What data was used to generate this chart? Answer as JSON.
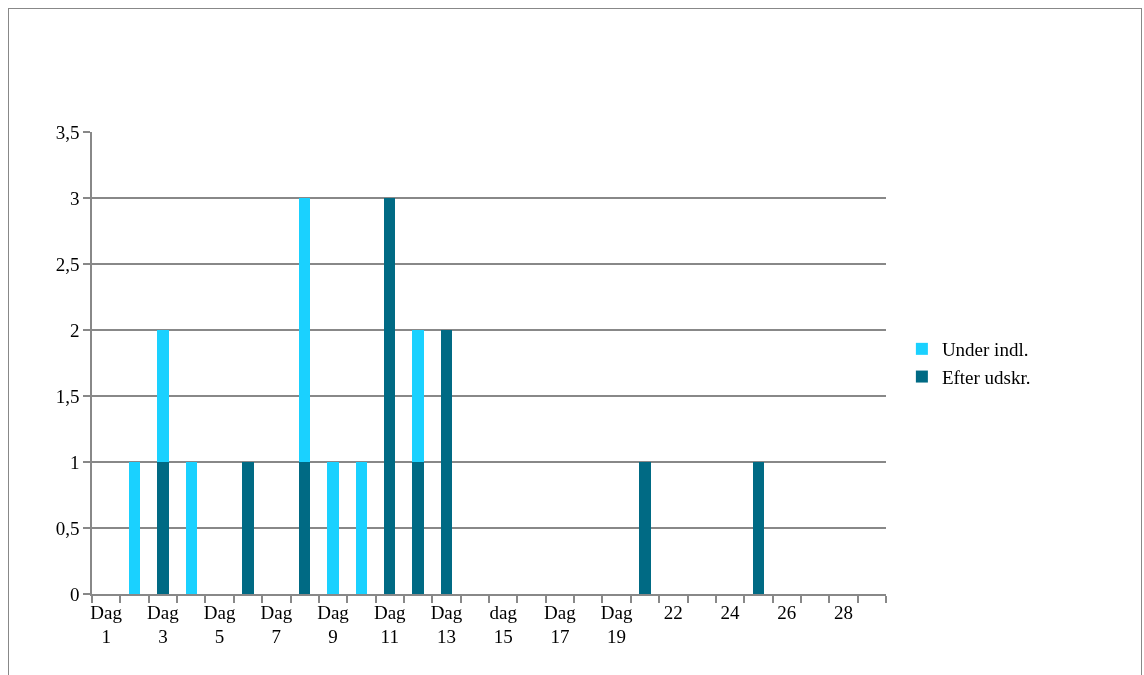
{
  "chart_data": {
    "type": "bar",
    "stacked": true,
    "categories": [
      "Dag 1",
      null,
      "Dag 3",
      null,
      "Dag 5",
      null,
      "Dag 7",
      null,
      "Dag 9",
      null,
      "Dag 11",
      null,
      "Dag 13",
      null,
      "dag 15",
      null,
      "Dag 17",
      null,
      "Dag 19",
      null,
      "22",
      null,
      "24",
      null,
      "26",
      null,
      "28",
      null
    ],
    "series": [
      {
        "name": "Efter udskr.",
        "color": "#006a84",
        "values": [
          0,
          0,
          1,
          0,
          0,
          1,
          0,
          1,
          0,
          0,
          3,
          1,
          2,
          0,
          0,
          0,
          0,
          0,
          0,
          1,
          0,
          0,
          0,
          1,
          0,
          0,
          0,
          0
        ]
      },
      {
        "name": "Under indl.",
        "color": "#1ad1ff",
        "values": [
          0,
          1,
          1,
          1,
          0,
          0,
          0,
          2,
          1,
          1,
          0,
          1,
          0,
          0,
          0,
          0,
          0,
          0,
          0,
          0,
          0,
          0,
          0,
          0,
          0,
          0,
          0,
          0
        ]
      }
    ],
    "ylim": [
      0,
      3.5
    ],
    "yticks": [
      0,
      {
        "value": 0.5,
        "label": "0,5"
      },
      1,
      {
        "value": 1.5,
        "label": "1,5"
      },
      2,
      {
        "value": 2.5,
        "label": "2,5"
      },
      3,
      {
        "value": 3.5,
        "label": "3,5"
      }
    ],
    "grid": "y",
    "legend": "right"
  }
}
